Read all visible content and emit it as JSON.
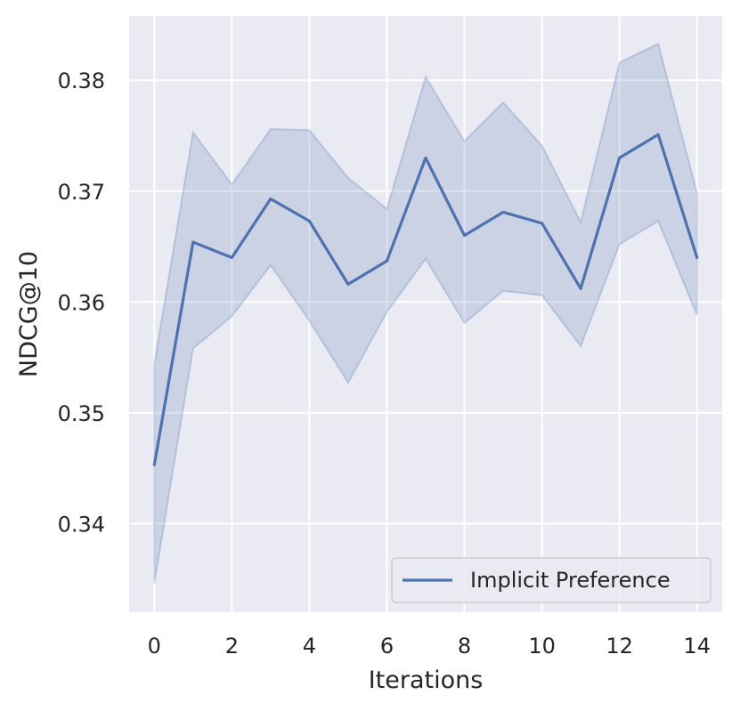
{
  "chart_data": {
    "type": "line",
    "title": "",
    "xlabel": "Iterations",
    "ylabel": "NDCG@10",
    "xlim": [
      -0.65,
      14.65
    ],
    "ylim": [
      0.332,
      0.3858
    ],
    "xticks": [
      0,
      2,
      4,
      6,
      8,
      10,
      12,
      14
    ],
    "xtick_labels": [
      "0",
      "2",
      "4",
      "6",
      "8",
      "10",
      "12",
      "14"
    ],
    "yticks": [
      0.34,
      0.35,
      0.36,
      0.37,
      0.38
    ],
    "ytick_labels": [
      "0.34",
      "0.35",
      "0.36",
      "0.37",
      "0.38"
    ],
    "grid": true,
    "legend_position": "bottom-right",
    "series": [
      {
        "name": "Implicit Preference",
        "color": "#4c72b0",
        "band_color": "#4c72b0",
        "x": [
          0,
          1,
          2,
          3,
          4,
          5,
          6,
          7,
          8,
          9,
          10,
          11,
          12,
          13,
          14
        ],
        "y": [
          0.3453,
          0.3654,
          0.364,
          0.3693,
          0.3673,
          0.3616,
          0.3637,
          0.373,
          0.366,
          0.3681,
          0.3671,
          0.3612,
          0.373,
          0.3751,
          0.364
        ],
        "lower": [
          0.3346,
          0.3558,
          0.3587,
          0.3633,
          0.3583,
          0.3527,
          0.3591,
          0.3639,
          0.3581,
          0.361,
          0.3606,
          0.356,
          0.3652,
          0.3673,
          0.3588
        ],
        "upper": [
          0.3544,
          0.3753,
          0.3706,
          0.3756,
          0.3755,
          0.3712,
          0.3684,
          0.3803,
          0.3745,
          0.378,
          0.3741,
          0.3672,
          0.3816,
          0.3833,
          0.3698
        ]
      }
    ]
  }
}
